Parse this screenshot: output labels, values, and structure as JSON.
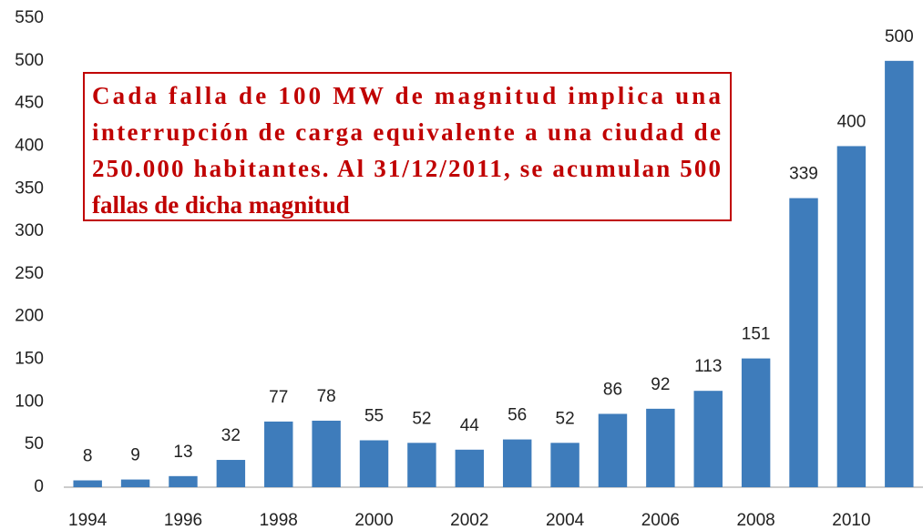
{
  "chart_data": {
    "type": "bar",
    "annotation": [
      "Cada falla de 100 MW de magnitud implica una",
      "interrupción de carga equivalente a una ciudad de",
      "250.000 habitantes. Al 31/12/2011, se acumulan 500",
      "fallas de dicha magnitud"
    ],
    "categories": [
      "1994",
      null,
      "1996",
      null,
      "1998",
      null,
      "2000",
      null,
      "2002",
      null,
      "2004",
      null,
      "2006",
      null,
      "2008",
      null,
      "2010",
      null
    ],
    "values": [
      8,
      9,
      13,
      32,
      77,
      78,
      55,
      52,
      44,
      56,
      52,
      86,
      92,
      113,
      151,
      339,
      400,
      500
    ],
    "color": "#3e7cbb",
    "ylim": [
      0,
      550
    ],
    "yticks": [
      0,
      50,
      100,
      150,
      200,
      250,
      300,
      350,
      400,
      450,
      500,
      550
    ],
    "grid": false
  }
}
